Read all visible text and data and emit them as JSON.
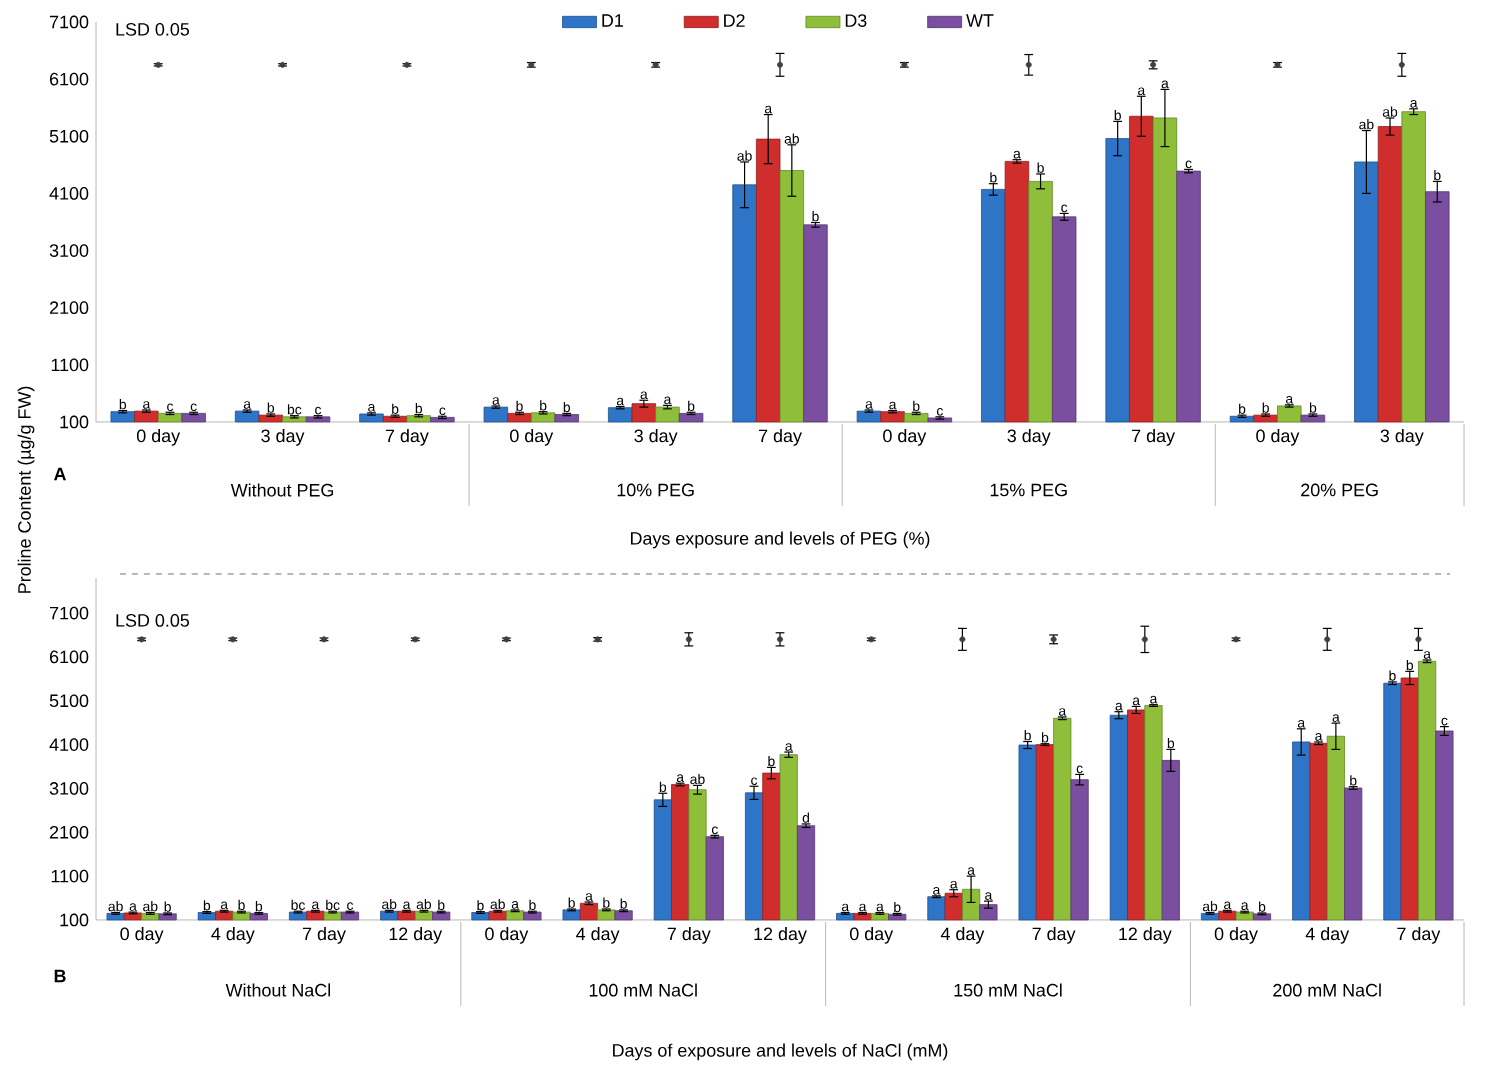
{
  "chart_data": [
    {
      "type": "bar",
      "xlabel": "Days  exposure and levels of PEG (%)",
      "ylabel": "Proline Content (µg/g FW)",
      "categories": [
        "0 day",
        "3 day",
        "7 day",
        "0 day",
        "3 day",
        "7 day",
        "0 day",
        "3 day",
        "7 day",
        "0 day",
        "3 day"
      ],
      "ylim": [
        100,
        7100
      ],
      "yticks": [
        100,
        1100,
        2100,
        3100,
        4100,
        5100,
        6100,
        7100
      ],
      "legend": "top",
      "annotations": [
        "LSD 0.05",
        "A",
        "Without PEG",
        "10% PEG",
        "15% PEG",
        "20% PEG"
      ],
      "series": [
        {
          "name": "D1",
          "color": "#2e75c8",
          "values": [
            280,
            290,
            240,
            360,
            350,
            4250,
            290,
            4170,
            5060,
            200,
            4650
          ],
          "errors": [
            20,
            20,
            20,
            20,
            20,
            400,
            20,
            100,
            300,
            20,
            550
          ],
          "value_labels": [
            "b",
            "a",
            "a",
            "a",
            "a",
            "ab",
            "a",
            "b",
            "b",
            "b",
            "ab"
          ]
        },
        {
          "name": "D2",
          "color": "#d02d2d",
          "values": [
            290,
            220,
            200,
            250,
            420,
            5050,
            280,
            4660,
            5450,
            220,
            5270
          ],
          "errors": [
            20,
            20,
            20,
            20,
            60,
            430,
            20,
            30,
            350,
            20,
            150
          ],
          "value_labels": [
            "a",
            "b",
            "b",
            "b",
            "a",
            "a",
            "a",
            "a",
            "a",
            "b",
            "ab"
          ]
        },
        {
          "name": "D3",
          "color": "#8fbf3a",
          "values": [
            250,
            190,
            210,
            260,
            360,
            4500,
            250,
            4310,
            5420,
            380,
            5530
          ],
          "errors": [
            20,
            20,
            20,
            20,
            30,
            450,
            20,
            130,
            500,
            20,
            50
          ],
          "value_labels": [
            "c",
            "bc",
            "b",
            "b",
            "a",
            "ab",
            "b",
            "b",
            "a",
            "a",
            "a"
          ]
        },
        {
          "name": "WT",
          "color": "#7a4fa0",
          "values": [
            250,
            190,
            180,
            230,
            250,
            3550,
            170,
            3690,
            4490,
            220,
            4130
          ],
          "errors": [
            20,
            20,
            20,
            20,
            20,
            40,
            20,
            60,
            30,
            20,
            180
          ],
          "value_labels": [
            "c",
            "c",
            "c",
            "b",
            "b",
            "b",
            "c",
            "c",
            "c",
            "b",
            "b"
          ]
        },
        {
          "type": "scatter",
          "marker": "circle",
          "color": "#404040",
          "values": [
            6350,
            6350,
            6350,
            6350,
            6350,
            6350,
            6350,
            6350,
            6350,
            6350,
            6350
          ],
          "errors": [
            20,
            20,
            20,
            40,
            40,
            200,
            40,
            180,
            70,
            40,
            200
          ]
        }
      ]
    },
    {
      "type": "bar",
      "xlabel": "Days of exposure and levels of NaCl (mM)",
      "categories": [
        "0 day",
        "4 day",
        "7 day",
        "12 day",
        "0 day",
        "4 day",
        "7 day",
        "12 day",
        "0 day",
        "4 day",
        "7 day",
        "12 day",
        "0 day",
        "4 day",
        "7 day"
      ],
      "ylim": [
        100,
        7900
      ],
      "yticks": [
        100,
        1100,
        2100,
        3100,
        4100,
        5100,
        6100,
        7100
      ],
      "annotations": [
        "LSD 0.05",
        "B",
        "Without NaCl",
        "100 mM NaCl",
        "150 mM NaCl",
        "200 mM NaCl"
      ],
      "series": [
        {
          "color": "#2e75c8",
          "values": [
            250,
            270,
            280,
            300,
            270,
            330,
            2840,
            3000,
            250,
            630,
            4090,
            4770,
            250,
            4160,
            5500
          ],
          "errors": [
            20,
            20,
            20,
            20,
            20,
            20,
            150,
            150,
            20,
            20,
            80,
            80,
            20,
            300,
            30
          ],
          "value_labels": [
            "ab",
            "b",
            "bc",
            "ab",
            "b",
            "b",
            "b",
            "c",
            "a",
            "a",
            "b",
            "a",
            "ab",
            "a",
            "b"
          ]
        },
        {
          "color": "#d02d2d",
          "values": [
            260,
            300,
            300,
            300,
            300,
            480,
            3190,
            3450,
            250,
            710,
            4100,
            4890,
            300,
            4130,
            5620
          ],
          "errors": [
            20,
            20,
            20,
            20,
            20,
            30,
            30,
            130,
            20,
            80,
            20,
            80,
            20,
            30,
            150
          ],
          "value_labels": [
            "a",
            "a",
            "a",
            "a",
            "ab",
            "a",
            "a",
            "b",
            "a",
            "a",
            "b",
            "a",
            "a",
            "a",
            "b"
          ]
        },
        {
          "color": "#8fbf3a",
          "values": [
            250,
            280,
            280,
            300,
            310,
            330,
            3070,
            3870,
            250,
            800,
            4700,
            4990,
            280,
            4290,
            6000
          ],
          "errors": [
            20,
            20,
            20,
            20,
            20,
            20,
            100,
            60,
            20,
            300,
            30,
            20,
            20,
            300,
            30
          ],
          "value_labels": [
            "ab",
            "b",
            "bc",
            "ab",
            "a",
            "b",
            "ab",
            "a",
            "a",
            "a",
            "a",
            "a",
            "a",
            "a",
            "a"
          ]
        },
        {
          "color": "#7a4fa0",
          "values": [
            240,
            250,
            280,
            280,
            280,
            310,
            2000,
            2250,
            230,
            450,
            3300,
            3740,
            240,
            3110,
            4410
          ],
          "errors": [
            20,
            20,
            20,
            20,
            20,
            20,
            30,
            40,
            20,
            80,
            120,
            250,
            20,
            30,
            100
          ],
          "value_labels": [
            "b",
            "b",
            "c",
            "b",
            "b",
            "b",
            "c",
            "d",
            "b",
            "a",
            "c",
            "b",
            "b",
            "b",
            "c"
          ]
        },
        {
          "type": "scatter",
          "marker": "circle",
          "color": "#404040",
          "values": [
            6500,
            6500,
            6500,
            6500,
            6500,
            6500,
            6500,
            6500,
            6500,
            6500,
            6500,
            6500,
            6500,
            6500,
            6500
          ],
          "errors": [
            30,
            30,
            30,
            30,
            30,
            40,
            150,
            150,
            30,
            250,
            100,
            300,
            30,
            250,
            250
          ]
        }
      ]
    }
  ]
}
